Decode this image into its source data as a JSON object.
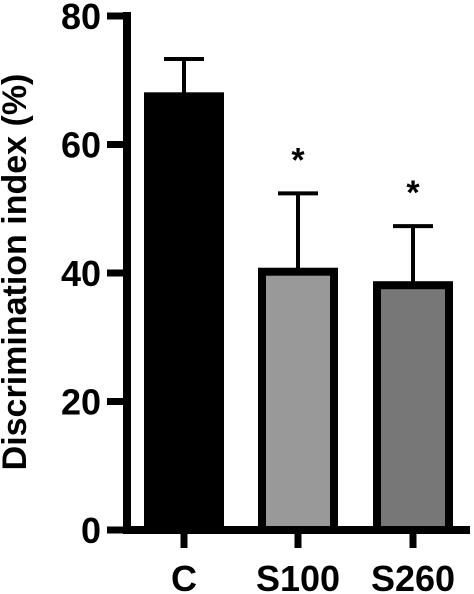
{
  "chart_data": {
    "type": "bar",
    "title": "",
    "xlabel": "",
    "ylabel": "Discrimination index (%)",
    "categories": [
      "C",
      "S100",
      "S260"
    ],
    "values": [
      67.5,
      40.2,
      38.1
    ],
    "error_upper": [
      73.3,
      52.4,
      47.3
    ],
    "annotations": [
      "",
      "*",
      "*"
    ],
    "bar_colors": [
      "#000000",
      "#999999",
      "#777777"
    ],
    "edge_color": "#000000",
    "ylim": [
      0,
      80
    ],
    "yticks": [
      0,
      20,
      40,
      60,
      80
    ],
    "grid": false,
    "legend": "none"
  }
}
